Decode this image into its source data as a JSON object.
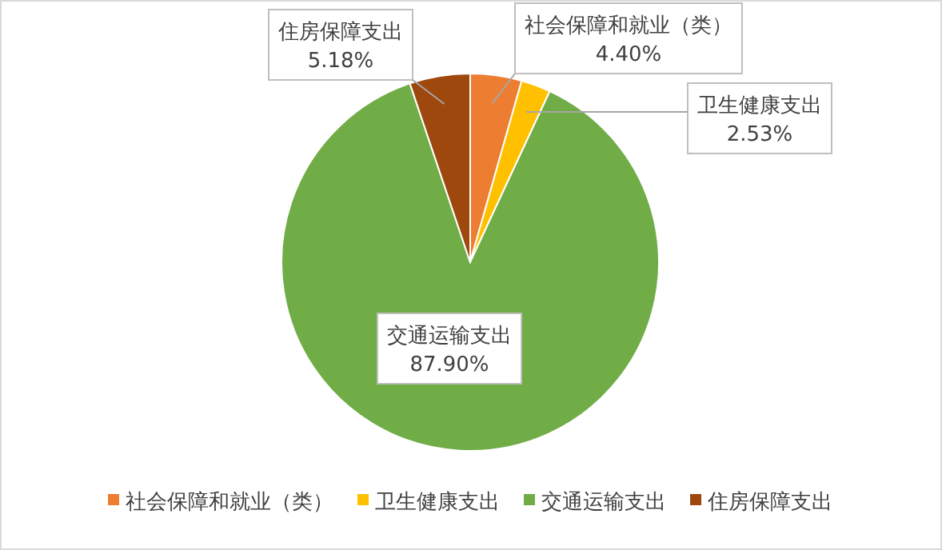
{
  "chart_data": {
    "type": "pie",
    "categories": [
      "社会保障和就业（类）",
      "卫生健康支出",
      "交通运输支出",
      "住房保障支出"
    ],
    "values": [
      4.4,
      2.53,
      87.9,
      5.18
    ],
    "colors": [
      "#ed7d31",
      "#ffc000",
      "#70ad47",
      "#9e480e"
    ],
    "value_labels": [
      "4.40%",
      "2.53%",
      "87.90%",
      "5.18%"
    ],
    "legend": "bottom"
  }
}
